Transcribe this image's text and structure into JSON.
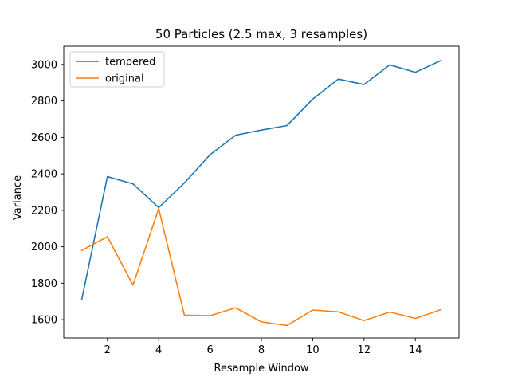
{
  "chart_data": {
    "type": "line",
    "title": "50 Particles (2.5 max, 3 resamples)",
    "xlabel": "Resample Window",
    "ylabel": "Variance",
    "x": [
      1,
      2,
      3,
      4,
      5,
      6,
      7,
      8,
      9,
      10,
      11,
      12,
      13,
      14,
      15
    ],
    "xlim": [
      0.3,
      15.7
    ],
    "ylim": [
      1500,
      3100
    ],
    "xticks": [
      2,
      4,
      6,
      8,
      10,
      12,
      14
    ],
    "yticks": [
      1600,
      1800,
      2000,
      2200,
      2400,
      2600,
      2800,
      3000
    ],
    "legend_position": "top-left",
    "grid": false,
    "series": [
      {
        "name": "tempered",
        "color": "#1f77b4",
        "values": [
          1710,
          2385,
          2345,
          2215,
          2350,
          2505,
          2612,
          2640,
          2665,
          2810,
          2920,
          2890,
          2998,
          2957,
          3022
        ]
      },
      {
        "name": "original",
        "color": "#ff7f0e",
        "values": [
          1980,
          2055,
          1790,
          2210,
          1625,
          1622,
          1665,
          1588,
          1568,
          1653,
          1643,
          1595,
          1642,
          1607,
          1655
        ]
      }
    ]
  }
}
